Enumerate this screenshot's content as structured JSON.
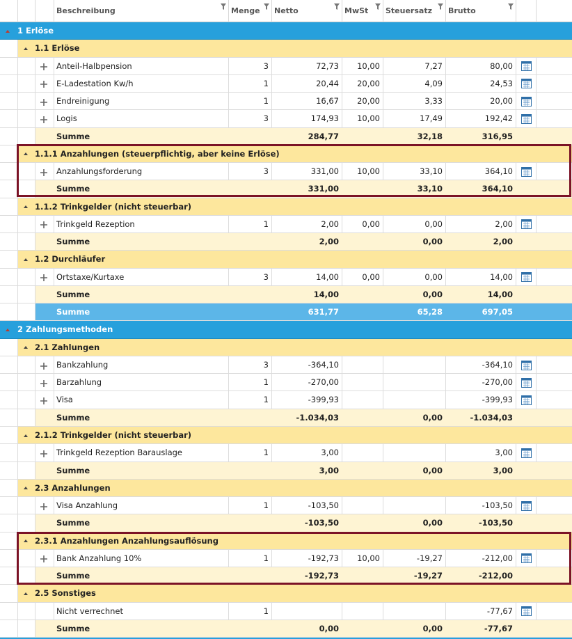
{
  "header": {
    "columns": [
      "Beschreibung",
      "Menge",
      "Netto",
      "MwSt",
      "Steuersatz",
      "Brutto"
    ]
  },
  "sections": [
    {
      "title": "1 Erlöse",
      "groups": [
        {
          "title": "1.1 Erlöse",
          "rows": [
            {
              "name": "Anteil-Halbpension",
              "menge": "3",
              "netto": "72,73",
              "mwst": "10,00",
              "steuersatz": "7,27",
              "brutto": "80,00"
            },
            {
              "name": "E-Ladestation Kw/h",
              "menge": "1",
              "netto": "20,44",
              "mwst": "20,00",
              "steuersatz": "4,09",
              "brutto": "24,53"
            },
            {
              "name": "Endreinigung",
              "menge": "1",
              "netto": "16,67",
              "mwst": "20,00",
              "steuersatz": "3,33",
              "brutto": "20,00"
            },
            {
              "name": "Logis",
              "menge": "3",
              "netto": "174,93",
              "mwst": "10,00",
              "steuersatz": "17,49",
              "brutto": "192,42"
            }
          ],
          "sum": {
            "label": "Summe",
            "netto": "284,77",
            "steuersatz": "32,18",
            "brutto": "316,95"
          }
        },
        {
          "title": "1.1.1 Anzahlungen (steuerpflichtig, aber keine Erlöse)",
          "rows": [
            {
              "name": "Anzahlungsforderung",
              "menge": "3",
              "netto": "331,00",
              "mwst": "10,00",
              "steuersatz": "33,10",
              "brutto": "364,10"
            }
          ],
          "sum": {
            "label": "Summe",
            "netto": "331,00",
            "steuersatz": "33,10",
            "brutto": "364,10"
          }
        },
        {
          "title": "1.1.2 Trinkgelder (nicht steuerbar)",
          "rows": [
            {
              "name": "Trinkgeld Rezeption",
              "menge": "1",
              "netto": "2,00",
              "mwst": "0,00",
              "steuersatz": "0,00",
              "brutto": "2,00"
            }
          ],
          "sum": {
            "label": "Summe",
            "netto": "2,00",
            "steuersatz": "0,00",
            "brutto": "2,00"
          }
        },
        {
          "title": "1.2 Durchläufer",
          "rows": [
            {
              "name": "Ortstaxe/Kurtaxe",
              "menge": "3",
              "netto": "14,00",
              "mwst": "0,00",
              "steuersatz": "0,00",
              "brutto": "14,00"
            }
          ],
          "sum": {
            "label": "Summe",
            "netto": "14,00",
            "steuersatz": "0,00",
            "brutto": "14,00"
          }
        }
      ],
      "total": {
        "label": "Summe",
        "netto": "631,77",
        "steuersatz": "65,28",
        "brutto": "697,05"
      }
    },
    {
      "title": "2 Zahlungsmethoden",
      "groups": [
        {
          "title": "2.1 Zahlungen",
          "rows": [
            {
              "name": "Bankzahlung",
              "menge": "3",
              "netto": "-364,10",
              "brutto": "-364,10"
            },
            {
              "name": "Barzahlung",
              "menge": "1",
              "netto": "-270,00",
              "brutto": "-270,00"
            },
            {
              "name": "Visa",
              "menge": "1",
              "netto": "-399,93",
              "brutto": "-399,93"
            }
          ],
          "sum": {
            "label": "Summe",
            "netto": "-1.034,03",
            "steuersatz": "0,00",
            "brutto": "-1.034,03"
          }
        },
        {
          "title": "2.1.2 Trinkgelder (nicht steuerbar)",
          "rows": [
            {
              "name": "Trinkgeld Rezeption Barauslage",
              "menge": "1",
              "netto": "3,00",
              "brutto": "3,00"
            }
          ],
          "sum": {
            "label": "Summe",
            "netto": "3,00",
            "steuersatz": "0,00",
            "brutto": "3,00"
          }
        },
        {
          "title": "2.3 Anzahlungen",
          "rows": [
            {
              "name": "Visa Anzahlung",
              "menge": "1",
              "netto": "-103,50",
              "brutto": "-103,50"
            }
          ],
          "sum": {
            "label": "Summe",
            "netto": "-103,50",
            "steuersatz": "0,00",
            "brutto": "-103,50"
          }
        },
        {
          "title": "2.3.1 Anzahlungen Anzahlungsauflösung",
          "rows": [
            {
              "name": "Bank Anzahlung 10%",
              "menge": "1",
              "netto": "-192,73",
              "mwst": "10,00",
              "steuersatz": "-19,27",
              "brutto": "-212,00"
            }
          ],
          "sum": {
            "label": "Summe",
            "netto": "-192,73",
            "steuersatz": "-19,27",
            "brutto": "-212,00"
          }
        },
        {
          "title": "2.5 Sonstiges",
          "rows": [
            {
              "name": "Nicht verrechnet",
              "menge": "1",
              "brutto": "-77,67",
              "expandable": false
            }
          ],
          "sum": {
            "label": "Summe",
            "netto": "0,00",
            "steuersatz": "0,00",
            "brutto": "-77,67"
          }
        }
      ]
    }
  ]
}
